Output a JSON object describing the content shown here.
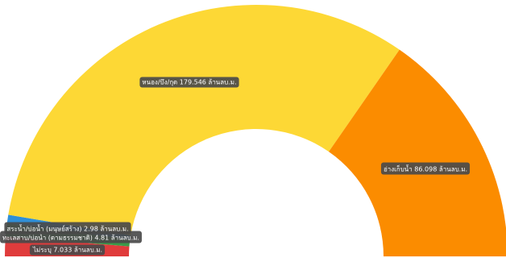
{
  "chart_data": {
    "type": "pie",
    "variant": "semi-donut",
    "title": "",
    "slices": [
      {
        "label": "ไม่ระบุ 7.033 ล้านลบ.ม.",
        "name": "ไม่ระบุ",
        "value": 7.033,
        "unit": "ล้านลบ.ม.",
        "color": "#e03c3c"
      },
      {
        "label": "ทะเลสาบ/บ่อน้ำ (ตามธรรมชาติ) 4.81 ล้านลบ.ม.",
        "name": "ทะเลสาบ/บ่อน้ำ (ตามธรรมชาติ)",
        "value": 4.81,
        "unit": "ล้านลบ.ม.",
        "color": "#3a9a48"
      },
      {
        "label": "สระน้ำ/บ่อน้ำ (มนุษย์สร้าง) 2.98 ล้านลบ.ม.",
        "name": "สระน้ำ/บ่อน้ำ (มนุษย์สร้าง)",
        "value": 2.98,
        "unit": "ล้านลบ.ม.",
        "color": "#2f8fd8"
      },
      {
        "label": "หนอง/บึง/กุด 179.546 ล้านลบ.ม.",
        "name": "หนอง/บึง/กุด",
        "value": 179.546,
        "unit": "ล้านลบ.ม.",
        "color": "#fdd835"
      },
      {
        "label": "อ่างเก็บน้ำ 86.098 ล้านลบ.ม.",
        "name": "อ่างเก็บน้ำ",
        "value": 86.098,
        "unit": "ล้านลบ.ม.",
        "color": "#fb8c00"
      }
    ]
  }
}
